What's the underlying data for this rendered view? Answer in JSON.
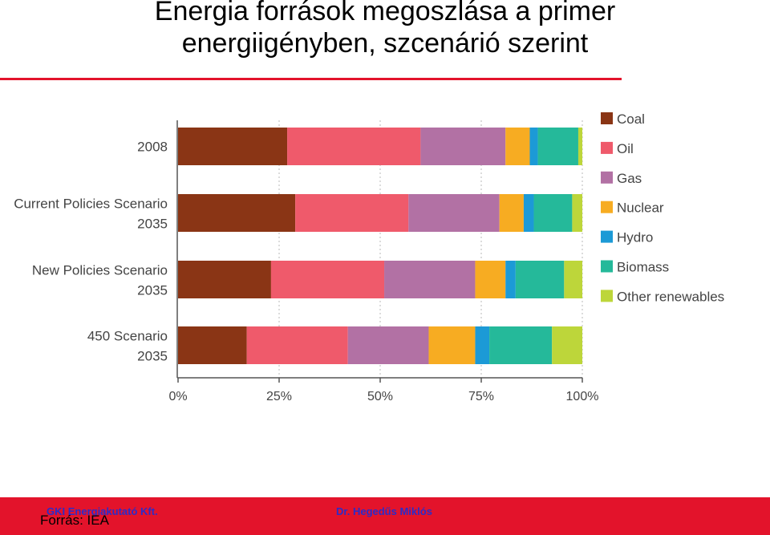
{
  "header": {
    "title_line1": "Energia források megoszlása a primer",
    "title_line2": "energiigényben, szcenárió szerint"
  },
  "chart_data": {
    "type": "bar",
    "orientation": "horizontal",
    "stacked": true,
    "normalized": true,
    "categories": [
      [
        "2008"
      ],
      [
        "Current Policies Scenario",
        "2035"
      ],
      [
        "New Policies Scenario",
        "2035"
      ],
      [
        "450 Scenario",
        "2035"
      ]
    ],
    "series": [
      {
        "name": "Coal",
        "color": "#8a3515",
        "values": [
          27,
          29,
          23,
          17
        ]
      },
      {
        "name": "Oil",
        "color": "#ef5a6b",
        "values": [
          33,
          28,
          28,
          25
        ]
      },
      {
        "name": "Gas",
        "color": "#b271a4",
        "values": [
          21,
          22.5,
          22.5,
          20
        ]
      },
      {
        "name": "Nuclear",
        "color": "#f7ac22",
        "values": [
          6,
          6,
          7.5,
          11.5
        ]
      },
      {
        "name": "Hydro",
        "color": "#1c9ad6",
        "values": [
          2,
          2.5,
          2.5,
          3.5
        ]
      },
      {
        "name": "Biomass",
        "color": "#25b99a",
        "values": [
          10,
          9.5,
          12,
          15.5
        ]
      },
      {
        "name": "Other renewables",
        "color": "#bdd63a",
        "values": [
          1,
          2.5,
          4.5,
          7.5
        ]
      }
    ],
    "xlim": [
      0,
      100
    ],
    "xticks": [
      "0%",
      "25%",
      "50%",
      "75%",
      "100%"
    ],
    "grid": "vertical dotted",
    "legend": "right"
  },
  "footer": {
    "org": "GKI Energiakutató Kft.",
    "author": "Dr. Hegedűs Miklós",
    "source": "Forrás: IEA"
  }
}
